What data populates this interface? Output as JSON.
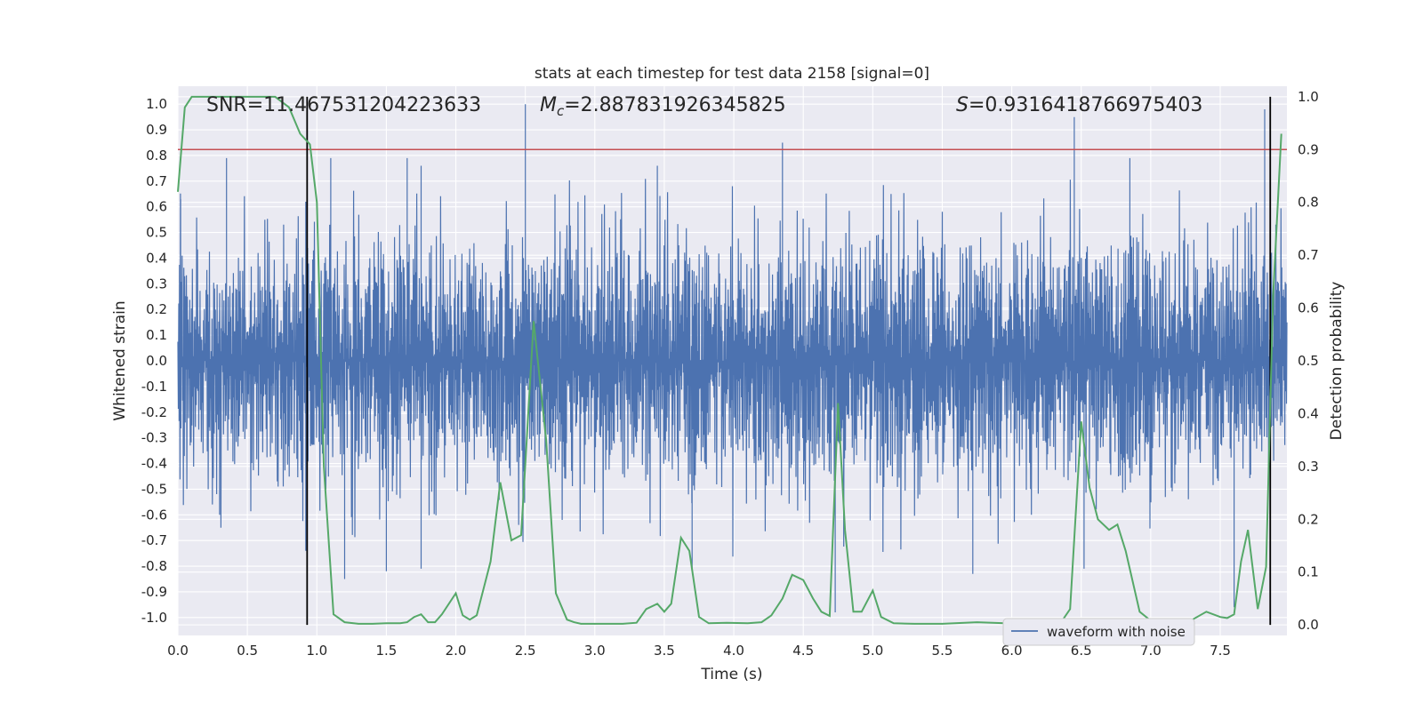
{
  "chart_data": {
    "type": "line",
    "title": "stats at each timestep for test data 2158 [signal=0]",
    "xlabel": "Time (s)",
    "ylabel": "Whitened strain",
    "y2label": "Detection probability",
    "xlim": [
      0.0,
      7.98
    ],
    "ylim": [
      -1.07,
      1.07
    ],
    "y2lim": [
      -0.02,
      1.02
    ],
    "x_ticks": [
      "0.0",
      "0.5",
      "1.0",
      "1.5",
      "2.0",
      "2.5",
      "3.0",
      "3.5",
      "4.0",
      "4.5",
      "5.0",
      "5.5",
      "6.0",
      "6.5",
      "7.0",
      "7.5"
    ],
    "y_ticks": [
      "-1.0",
      "-0.9",
      "-0.8",
      "-0.7",
      "-0.6",
      "-0.5",
      "-0.4",
      "-0.3",
      "-0.2",
      "-0.1",
      "0.0",
      "0.1",
      "0.2",
      "0.3",
      "0.4",
      "0.5",
      "0.6",
      "0.7",
      "0.8",
      "0.9",
      "1.0"
    ],
    "y2_ticks": [
      "0.0",
      "0.1",
      "0.2",
      "0.3",
      "0.4",
      "0.5",
      "0.6",
      "0.7",
      "0.8",
      "0.9",
      "1.0"
    ],
    "grid": true,
    "legend_position": "bottom-right",
    "annotations": {
      "snr": "SNR=11.467531204223633",
      "mc_symbol": "M",
      "mc_sub": "c",
      "mc_value": "=2.887831926345825",
      "s_symbol": "S",
      "s_value": "=0.9316418766975403"
    },
    "threshold": 0.9,
    "vlines": [
      0.93,
      7.86
    ],
    "series": [
      {
        "name": "waveform with noise",
        "color": "#4c72b0",
        "kind": "noisy strain",
        "envelope_typical": 0.45,
        "peaks": [
          [
            0.02,
            0.63
          ],
          [
            0.35,
            0.79
          ],
          [
            0.92,
            0.62
          ],
          [
            1.1,
            0.79
          ],
          [
            1.65,
            0.79
          ],
          [
            1.75,
            0.76
          ],
          [
            2.5,
            1.0
          ],
          [
            3.45,
            0.76
          ],
          [
            4.35,
            0.85
          ],
          [
            6.45,
            0.95
          ],
          [
            6.85,
            0.79
          ],
          [
            7.82,
            0.98
          ]
        ],
        "troughs": [
          [
            0.3,
            -0.6
          ],
          [
            0.92,
            -0.74
          ],
          [
            1.2,
            -0.85
          ],
          [
            1.5,
            -0.82
          ],
          [
            1.75,
            -0.81
          ],
          [
            3.7,
            -0.82
          ],
          [
            4.73,
            -0.98
          ],
          [
            5.72,
            -0.83
          ],
          [
            6.52,
            -0.81
          ],
          [
            7.6,
            -0.96
          ]
        ]
      },
      {
        "name": "",
        "color": "#55a868",
        "axis": "right",
        "x": [
          0.0,
          0.05,
          0.1,
          0.2,
          0.3,
          0.4,
          0.5,
          0.6,
          0.7,
          0.8,
          0.88,
          0.95,
          1.0,
          1.05,
          1.12,
          1.2,
          1.3,
          1.4,
          1.5,
          1.6,
          1.65,
          1.7,
          1.75,
          1.8,
          1.85,
          1.9,
          2.0,
          2.05,
          2.1,
          2.15,
          2.25,
          2.32,
          2.4,
          2.47,
          2.56,
          2.65,
          2.72,
          2.8,
          2.85,
          2.9,
          3.0,
          3.1,
          3.2,
          3.3,
          3.37,
          3.45,
          3.5,
          3.55,
          3.62,
          3.68,
          3.75,
          3.82,
          3.95,
          4.1,
          4.2,
          4.27,
          4.35,
          4.42,
          4.5,
          4.57,
          4.63,
          4.69,
          4.75,
          4.8,
          4.86,
          4.92,
          5.0,
          5.06,
          5.15,
          5.3,
          5.5,
          5.75,
          5.95,
          6.2,
          6.35,
          6.42,
          6.5,
          6.56,
          6.62,
          6.7,
          6.76,
          6.82,
          6.92,
          7.0,
          7.1,
          7.15,
          7.2,
          7.3,
          7.4,
          7.5,
          7.55,
          7.6,
          7.65,
          7.7,
          7.77,
          7.83,
          7.88,
          7.94
        ],
        "values": [
          0.82,
          0.98,
          1.0,
          1.0,
          1.0,
          1.0,
          1.0,
          1.0,
          1.0,
          0.98,
          0.93,
          0.91,
          0.8,
          0.3,
          0.02,
          0.005,
          0.002,
          0.002,
          0.003,
          0.003,
          0.005,
          0.015,
          0.02,
          0.005,
          0.005,
          0.02,
          0.06,
          0.018,
          0.01,
          0.018,
          0.12,
          0.27,
          0.16,
          0.17,
          0.575,
          0.35,
          0.06,
          0.01,
          0.005,
          0.002,
          0.002,
          0.002,
          0.002,
          0.004,
          0.03,
          0.04,
          0.025,
          0.04,
          0.165,
          0.14,
          0.015,
          0.003,
          0.004,
          0.003,
          0.005,
          0.018,
          0.05,
          0.095,
          0.085,
          0.05,
          0.025,
          0.017,
          0.42,
          0.18,
          0.025,
          0.025,
          0.065,
          0.015,
          0.003,
          0.002,
          0.002,
          0.005,
          0.003,
          0.003,
          0.003,
          0.03,
          0.385,
          0.26,
          0.2,
          0.18,
          0.19,
          0.14,
          0.025,
          0.008,
          0.01,
          0.007,
          0.007,
          0.01,
          0.025,
          0.015,
          0.013,
          0.02,
          0.12,
          0.18,
          0.03,
          0.11,
          0.62,
          0.93
        ]
      },
      {
        "name": "",
        "color": "#c44e52",
        "kind": "threshold",
        "axis": "right",
        "value": 0.9
      }
    ]
  }
}
